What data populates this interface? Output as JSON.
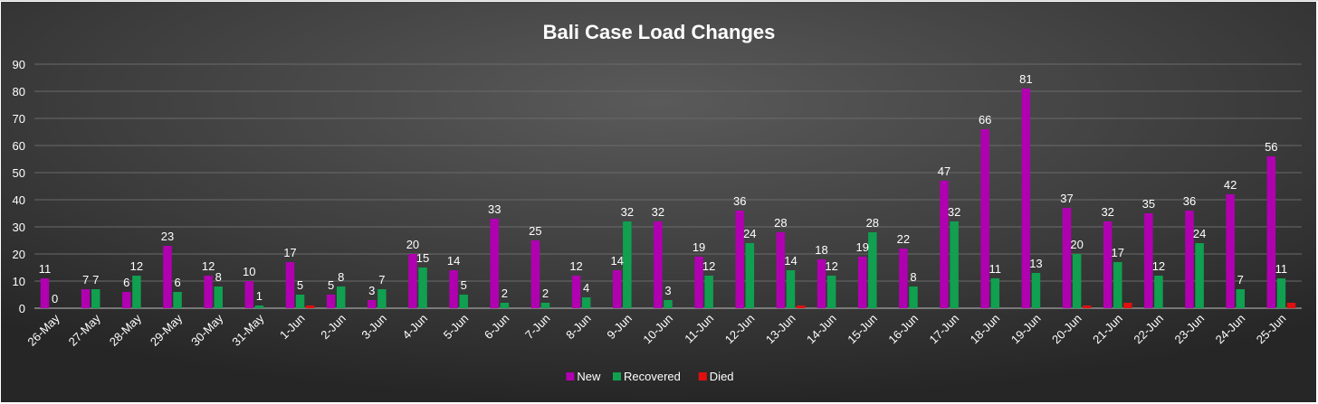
{
  "chart_data": {
    "type": "bar",
    "title": "Bali Case Load Changes",
    "categories": [
      "26-May",
      "27-May",
      "28-May",
      "29-May",
      "30-May",
      "31-May",
      "1-Jun",
      "2-Jun",
      "3-Jun",
      "4-Jun",
      "5-Jun",
      "6-Jun",
      "7-Jun",
      "8-Jun",
      "9-Jun",
      "10-Jun",
      "11-Jun",
      "12-Jun",
      "13-Jun",
      "14-Jun",
      "15-Jun",
      "16-Jun",
      "17-Jun",
      "18-Jun",
      "19-Jun",
      "20-Jun",
      "21-Jun",
      "22-Jun",
      "23-Jun",
      "24-Jun",
      "25-Jun"
    ],
    "series": [
      {
        "name": "New",
        "color": "#b000b0",
        "values": [
          11,
          7,
          6,
          23,
          12,
          10,
          17,
          5,
          3,
          20,
          14,
          33,
          25,
          12,
          14,
          32,
          19,
          36,
          28,
          18,
          19,
          22,
          47,
          66,
          81,
          37,
          32,
          35,
          36,
          42,
          56
        ],
        "labels": [
          "11",
          "7",
          "6",
          "23",
          "12",
          "10",
          "17",
          "5",
          "3",
          "20",
          "14",
          "33",
          "25",
          "12",
          "14",
          "32",
          "19",
          "36",
          "28",
          "18",
          "19",
          "22",
          "47",
          "66",
          "81",
          "37",
          "32",
          "35",
          "36",
          "42",
          "56"
        ]
      },
      {
        "name": "Recovered",
        "color": "#10a050",
        "values": [
          0,
          7,
          12,
          6,
          8,
          1,
          5,
          8,
          7,
          15,
          5,
          2,
          2,
          4,
          32,
          3,
          12,
          24,
          14,
          12,
          28,
          8,
          32,
          11,
          13,
          20,
          17,
          12,
          24,
          7,
          11
        ],
        "labels": [
          "0",
          "7",
          "12",
          "6",
          "8",
          "1",
          "5",
          "8",
          "7",
          "15",
          "5",
          "2",
          "2",
          "4",
          "32",
          "3",
          "12",
          "24",
          "14",
          "12",
          "28",
          "8",
          "32",
          "11",
          "13",
          "20",
          "17",
          "12",
          "24",
          "7",
          "11"
        ]
      },
      {
        "name": "Died",
        "color": "#e01010",
        "values": [
          0,
          0,
          0,
          0,
          0,
          0,
          1,
          0,
          0,
          0,
          0,
          0,
          0,
          0,
          0,
          0,
          0,
          0,
          1,
          0,
          0,
          0,
          0,
          0,
          0,
          1,
          2,
          0,
          0,
          0,
          2
        ]
      }
    ],
    "ylim": [
      0,
      90
    ],
    "yticks": [
      0,
      10,
      20,
      30,
      40,
      50,
      60,
      70,
      80,
      90
    ],
    "grid": true,
    "legend": "bottom-center",
    "background": "#3a3a3a",
    "text_color": "#ffffff"
  }
}
